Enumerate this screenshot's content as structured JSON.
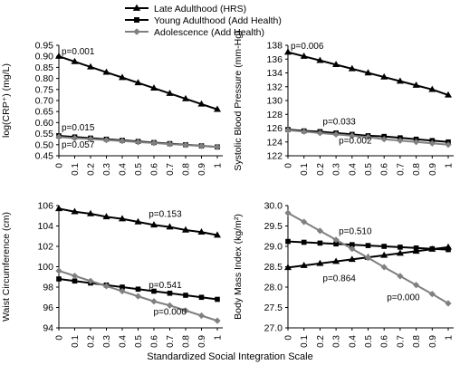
{
  "legend": [
    {
      "name": "Late Adulthood  (HRS)",
      "marker": "triangle",
      "color": "#000000"
    },
    {
      "name": "Young Adulthood  (Add Health)",
      "marker": "square",
      "color": "#000000"
    },
    {
      "name": "Adolescence  (Add Health)",
      "marker": "diamond",
      "color": "#808080"
    }
  ],
  "xlabel": "Standardized  Social Integration Scale",
  "chart_data": [
    {
      "type": "line",
      "ylabel": "log(CRP⁺)  (mg/L)",
      "x": [
        0,
        0.1,
        0.2,
        0.3,
        0.4,
        0.5,
        0.6,
        0.7,
        0.8,
        0.9,
        1
      ],
      "ylim": [
        0.45,
        0.95
      ],
      "yticks": [
        0.45,
        0.5,
        0.55,
        0.6,
        0.65,
        0.7,
        0.75,
        0.8,
        0.85,
        0.9,
        0.95
      ],
      "ytick_labels": [
        "0.45",
        "0.50",
        "0.55",
        "0.60",
        "0.65",
        "0.70",
        "0.75",
        "0.80",
        "0.85",
        "0.90",
        "0.95"
      ],
      "series": [
        {
          "name": "Late Adulthood  (HRS)",
          "values": [
            0.9,
            0.876,
            0.852,
            0.828,
            0.804,
            0.78,
            0.756,
            0.732,
            0.708,
            0.684,
            0.66
          ]
        },
        {
          "name": "Young Adulthood  (Add Health)",
          "values": [
            0.54,
            0.535,
            0.53,
            0.525,
            0.52,
            0.515,
            0.51,
            0.505,
            0.5,
            0.495,
            0.49
          ]
        },
        {
          "name": "Adolescence  (Add Health)",
          "values": [
            0.535,
            0.53,
            0.526,
            0.521,
            0.517,
            0.512,
            0.508,
            0.503,
            0.499,
            0.494,
            0.49
          ]
        }
      ],
      "annotations": [
        {
          "text": "p=0.001",
          "x": 0,
          "y": 0.91
        },
        {
          "text": "p=0.015",
          "x": 0,
          "y": 0.564
        },
        {
          "text": "p=0.057",
          "x": 0,
          "y": 0.486
        }
      ]
    },
    {
      "type": "line",
      "ylabel": "Systolic Blood Pressure  (mm-Hg)",
      "x": [
        0,
        0.1,
        0.2,
        0.3,
        0.4,
        0.5,
        0.6,
        0.7,
        0.8,
        0.9,
        1
      ],
      "ylim": [
        122,
        138
      ],
      "yticks": [
        122,
        124,
        126,
        128,
        130,
        132,
        134,
        136,
        138
      ],
      "ytick_labels": [
        "122",
        "124",
        "126",
        "128",
        "130",
        "132",
        "134",
        "136",
        "138"
      ],
      "series": [
        {
          "name": "Late Adulthood  (HRS)",
          "values": [
            137.0,
            136.4,
            135.8,
            135.2,
            134.6,
            134.0,
            133.4,
            132.8,
            132.2,
            131.6,
            130.8
          ]
        },
        {
          "name": "Young Adulthood  (Add Health)",
          "values": [
            125.8,
            125.6,
            125.5,
            125.3,
            125.1,
            124.9,
            124.8,
            124.6,
            124.4,
            124.2,
            124.0
          ]
        },
        {
          "name": "Adolescence  (Add Health)",
          "values": [
            125.7,
            125.5,
            125.3,
            125.1,
            124.9,
            124.7,
            124.4,
            124.2,
            124.0,
            123.8,
            123.6
          ]
        }
      ],
      "annotations": [
        {
          "text": "p=0.006",
          "x": 0,
          "y": 137.5
        },
        {
          "text": "p=0.033",
          "x": 0.2,
          "y": 126.5
        },
        {
          "text": "p=0.002",
          "x": 0.3,
          "y": 123.8
        }
      ]
    },
    {
      "type": "line",
      "ylabel": "Waist Circumference (cm)",
      "x": [
        0,
        0.1,
        0.2,
        0.3,
        0.4,
        0.5,
        0.6,
        0.7,
        0.8,
        0.9,
        1
      ],
      "ylim": [
        94,
        106
      ],
      "yticks": [
        94,
        96,
        98,
        100,
        102,
        104,
        106
      ],
      "ytick_labels": [
        "94",
        "96",
        "98",
        "100",
        "102",
        "104",
        "106"
      ],
      "series": [
        {
          "name": "Late Adulthood  (HRS)",
          "values": [
            105.7,
            105.4,
            105.2,
            104.9,
            104.7,
            104.4,
            104.1,
            103.9,
            103.6,
            103.4,
            103.1
          ]
        },
        {
          "name": "Young Adulthood  (Add Health)",
          "values": [
            98.8,
            98.6,
            98.4,
            98.2,
            98.0,
            97.8,
            97.6,
            97.4,
            97.2,
            97.0,
            96.8
          ]
        },
        {
          "name": "Adolescence  (Add Health)",
          "values": [
            99.6,
            99.1,
            98.6,
            98.1,
            97.6,
            97.1,
            96.6,
            96.2,
            95.7,
            95.2,
            94.7
          ]
        }
      ],
      "annotations": [
        {
          "text": "p=0.153",
          "x": 0.55,
          "y": 104.9
        },
        {
          "text": "p=0.541",
          "x": 0.55,
          "y": 97.9
        },
        {
          "text": "p=0.000",
          "x": 0.58,
          "y": 95.3
        }
      ]
    },
    {
      "type": "line",
      "ylabel": "Body Mass Index (kg/m²)",
      "x": [
        0,
        0.1,
        0.2,
        0.3,
        0.4,
        0.5,
        0.6,
        0.7,
        0.8,
        0.9,
        1
      ],
      "ylim": [
        27.0,
        30.0
      ],
      "yticks": [
        27.0,
        27.5,
        28.0,
        28.5,
        29.0,
        29.5,
        30.0
      ],
      "ytick_labels": [
        "27.0",
        "27.5",
        "28.0",
        "28.5",
        "29.0",
        "29.5",
        "30.0"
      ],
      "series": [
        {
          "name": "Late Adulthood  (HRS)",
          "values": [
            28.48,
            28.53,
            28.58,
            28.63,
            28.68,
            28.73,
            28.78,
            28.83,
            28.88,
            28.93,
            28.98
          ]
        },
        {
          "name": "Young Adulthood  (Add Health)",
          "values": [
            29.12,
            29.1,
            29.08,
            29.06,
            29.04,
            29.02,
            29.0,
            28.98,
            28.96,
            28.94,
            28.92
          ]
        },
        {
          "name": "Adolescence  (Add Health)",
          "values": [
            29.82,
            29.6,
            29.38,
            29.16,
            28.94,
            28.72,
            28.49,
            28.27,
            28.05,
            27.83,
            27.6
          ]
        }
      ],
      "annotations": [
        {
          "text": "p=0.510",
          "x": 0.3,
          "y": 29.3
        },
        {
          "text": "p=0.864",
          "x": 0.2,
          "y": 28.15
        },
        {
          "text": "p=0.000",
          "x": 0.6,
          "y": 27.68
        }
      ]
    }
  ]
}
